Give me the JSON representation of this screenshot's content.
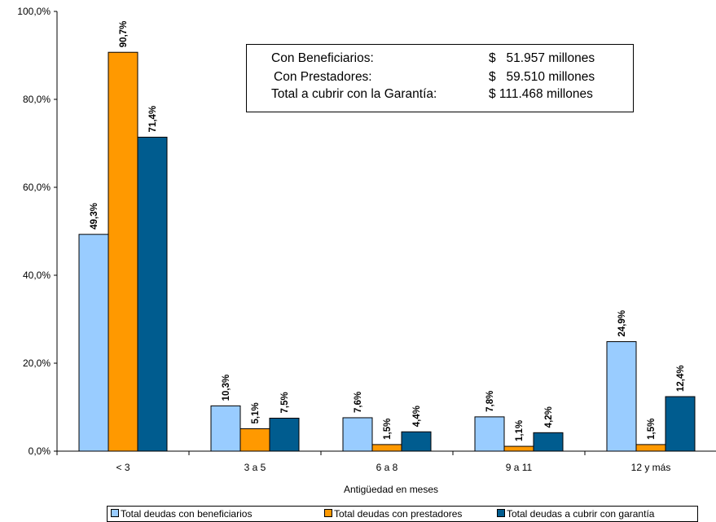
{
  "chart_data": {
    "type": "bar",
    "xlabel": "Antigüedad en meses",
    "ylabel": "",
    "ylim": [
      0,
      100
    ],
    "yticks": [
      "0,0%",
      "20,0%",
      "40,0%",
      "60,0%",
      "80,0%",
      "100,0%"
    ],
    "categories": [
      "< 3",
      "3 a 5",
      "6 a 8",
      "9 a 11",
      "12 y más"
    ],
    "series": [
      {
        "name": "Total deudas con beneficiarios",
        "color": "#99ccff",
        "values": [
          49.3,
          10.3,
          7.6,
          7.8,
          24.9
        ],
        "labels": [
          "49,3%",
          "10,3%",
          "7,6%",
          "7,8%",
          "24,9%"
        ]
      },
      {
        "name": "Total deudas con prestadores",
        "color": "#ff9900",
        "values": [
          90.7,
          5.1,
          1.5,
          1.1,
          1.5
        ],
        "labels": [
          "90,7%",
          "5,1%",
          "1,5%",
          "1,1%",
          "1,5%"
        ]
      },
      {
        "name": "Total deudas a cubrir con garantía",
        "color": "#005c8f",
        "values": [
          71.4,
          7.5,
          4.4,
          4.2,
          12.4
        ],
        "labels": [
          "71,4%",
          "7,5%",
          "4,4%",
          "4,2%",
          "12,4%"
        ]
      }
    ],
    "legend_position": "bottom",
    "grid": false,
    "annotation": {
      "rows": [
        {
          "label": "Con Beneficiarios:",
          "value": "$   51.957 millones"
        },
        {
          "label": "Con Prestadores:",
          "value": "$   59.510 millones"
        },
        {
          "label": "Total a cubrir con la Garantía:",
          "value": "$ 111.468 millones"
        }
      ]
    }
  }
}
